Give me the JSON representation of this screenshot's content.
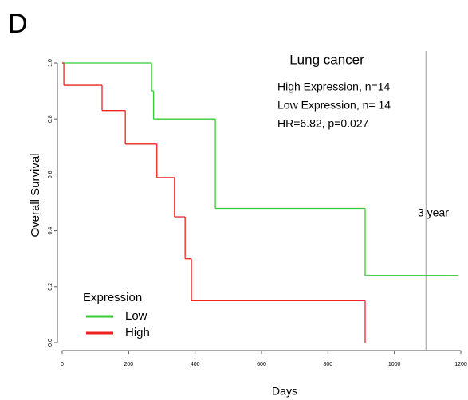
{
  "panel_label": "D",
  "chart_data": {
    "type": "step",
    "title": "Lung cancer",
    "annotations": [
      "High Expression, n=14",
      "Low Expression, n= 14",
      "HR=6.82, p=0.027"
    ],
    "xlabel": "Days",
    "ylabel": "Overall Survival",
    "xlim": [
      0,
      1200
    ],
    "ylim": [
      0,
      1
    ],
    "xticks": [
      0,
      200,
      400,
      600,
      800,
      1000,
      1200
    ],
    "yticks": [
      {
        "value": 0,
        "label": "0.0"
      },
      {
        "value": 0.2,
        "label": "0.2"
      },
      {
        "value": 0.4,
        "label": "0.4"
      },
      {
        "value": 0.6,
        "label": "0.6"
      },
      {
        "value": 0.8,
        "label": "0.8"
      },
      {
        "value": 1,
        "label": "1.0"
      }
    ],
    "reference_line": {
      "x": 1095,
      "label": "3 year"
    },
    "legend_title": "Expression",
    "legend": "bottom-left",
    "series": [
      {
        "name": "Low",
        "color": "#33cc33",
        "x": [
          0,
          269,
          275,
          461,
          912
        ],
        "values": [
          1,
          0.9,
          0.8,
          0.48,
          0.24
        ],
        "end": 1192
      },
      {
        "name": "High",
        "color": "#ee2222",
        "x": [
          0,
          5,
          120,
          190,
          285,
          338,
          370,
          389,
          912
        ],
        "values": [
          1,
          0.92,
          0.83,
          0.71,
          0.59,
          0.45,
          0.3,
          0.15,
          0
        ],
        "end": 912
      }
    ]
  }
}
